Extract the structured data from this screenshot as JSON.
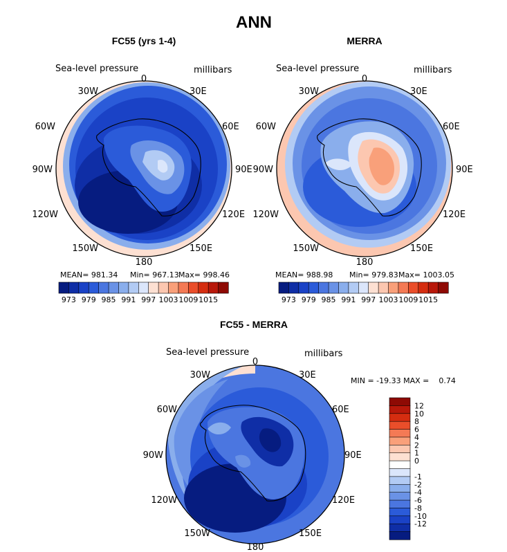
{
  "figure": {
    "title": "ANN",
    "colors": {
      "pos": [
        "#ffffff",
        "#fde0d2",
        "#fcc7b0",
        "#f9a07a",
        "#f47a55",
        "#ea4e2a",
        "#d52d10",
        "#b8180a",
        "#8e0a04"
      ],
      "neg": [
        "#dbe6fb",
        "#b2cbf4",
        "#8aaeec",
        "#6a92e6",
        "#4b76e0",
        "#2b5bd9",
        "#1a42c6",
        "#0f2ea6",
        "#061c80"
      ]
    }
  },
  "panels": [
    {
      "id": "fc55",
      "title": "FC55 (yrs 1-4)",
      "field_label": "Sea-level pressure",
      "units_label": "millibars",
      "lon_labels": {
        "n": "0",
        "ne": "30E",
        "e1": "60E",
        "e": "90E",
        "se1": "120E",
        "se": "150E",
        "s": "180",
        "sw": "150W",
        "w1": "120W",
        "w": "90W",
        "nw1": "60W",
        "nw": "30W"
      },
      "stats": {
        "mean": "MEAN= 981.34",
        "min": "Min= 967.13",
        "max": "Max= 998.46"
      },
      "colorbar": {
        "colors": [
          "#061c80",
          "#0f2ea6",
          "#1a42c6",
          "#2b5bd9",
          "#4b76e0",
          "#6a92e6",
          "#8aaeec",
          "#b2cbf4",
          "#dbe6fb",
          "#fde0d2",
          "#fcc7b0",
          "#f9a07a",
          "#f47a55",
          "#ea4e2a",
          "#d52d10",
          "#b8180a",
          "#8e0a04"
        ],
        "tick_labels": [
          "973",
          "979",
          "985",
          "991",
          "997",
          "1003",
          "1009",
          "1015"
        ]
      },
      "field": {
        "ocean_band_mb": [
          1002,
          998,
          991,
          985,
          979,
          973,
          970
        ],
        "land_center_mb": 991,
        "max_mb": 998.46,
        "min_mb": 967.13
      }
    },
    {
      "id": "merra",
      "title": "MERRA",
      "field_label": "Sea-level pressure",
      "units_label": "millibars",
      "lon_labels": {
        "n": "0",
        "ne": "30E",
        "e1": "60E",
        "e": "90E",
        "se1": "120E",
        "se": "150E",
        "s": "180",
        "sw": "150W",
        "w1": "120W",
        "w": "90W",
        "nw1": "60W",
        "nw": "30W"
      },
      "stats": {
        "mean": "MEAN= 988.98",
        "min": "Min= 979.83",
        "max": "Max= 1003.05"
      },
      "colorbar": {
        "colors": [
          "#061c80",
          "#0f2ea6",
          "#1a42c6",
          "#2b5bd9",
          "#4b76e0",
          "#6a92e6",
          "#8aaeec",
          "#b2cbf4",
          "#dbe6fb",
          "#fde0d2",
          "#fcc7b0",
          "#f9a07a",
          "#f47a55",
          "#ea4e2a",
          "#d52d10",
          "#b8180a",
          "#8e0a04"
        ],
        "tick_labels": [
          "973",
          "979",
          "985",
          "991",
          "997",
          "1003",
          "1009",
          "1015"
        ]
      },
      "field": {
        "ocean_band_mb": [
          1003,
          999,
          994,
          990,
          986,
          982,
          980
        ],
        "land_center_mb": 1000,
        "max_mb": 1003.05,
        "min_mb": 979.83
      }
    },
    {
      "id": "diff",
      "title": "FC55 - MERRA",
      "field_label": "Sea-level pressure",
      "units_label": "millibars",
      "lon_labels": {
        "n": "0",
        "ne": "30E",
        "e1": "60E",
        "e": "90E",
        "se1": "120E",
        "se": "150E",
        "s": "180",
        "sw": "150W",
        "w1": "120W",
        "w": "90W",
        "nw1": "60W",
        "nw": "30W"
      },
      "minmax_text": "MIN = -19.33 MAX =    0.74",
      "colorbar": {
        "colors": [
          "#8e0a04",
          "#b8180a",
          "#d52d10",
          "#ea4e2a",
          "#f47a55",
          "#f9a07a",
          "#fcc7b0",
          "#fde0d2",
          "#ffffff",
          "#dbe6fb",
          "#b2cbf4",
          "#8aaeec",
          "#6a92e6",
          "#4b76e0",
          "#2b5bd9",
          "#1a42c6",
          "#0f2ea6",
          "#061c80"
        ],
        "tick_labels": [
          "12",
          "10",
          "8",
          "6",
          "4",
          "2",
          "1",
          "0",
          "-1",
          "-2",
          "-4",
          "-6",
          "-8",
          "-10",
          "-12"
        ]
      },
      "field": {
        "min": -19.33,
        "max": 0.74
      }
    }
  ]
}
